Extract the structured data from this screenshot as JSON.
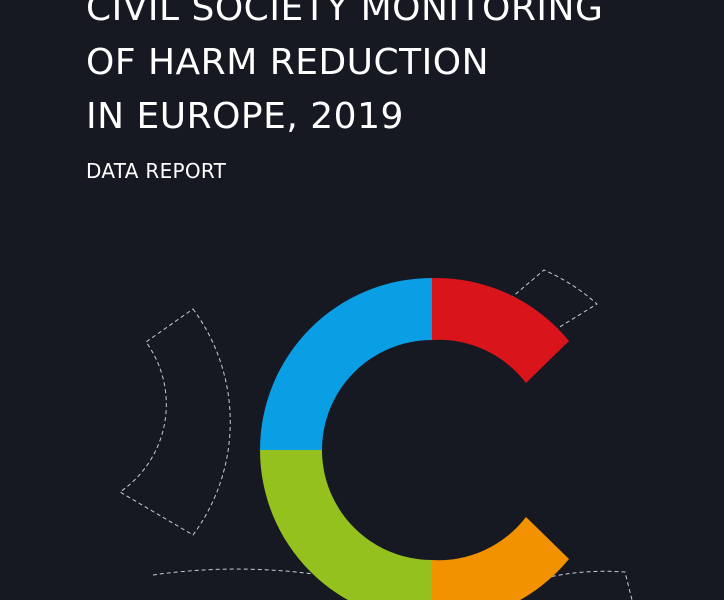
{
  "report": {
    "title_lines": [
      "CIVIL SOCIETY MONITORING",
      "OF HARM REDUCTION",
      "IN EUROPE, 2019"
    ],
    "subtitle": "DATA REPORT"
  },
  "colors": {
    "background": "#161822",
    "text": "#ffffff",
    "dashed_outline": "#c9ccd4",
    "logo_blue": "#0a9ee4",
    "logo_red": "#d9141b",
    "logo_green": "#95c11f",
    "logo_orange": "#f39200"
  }
}
